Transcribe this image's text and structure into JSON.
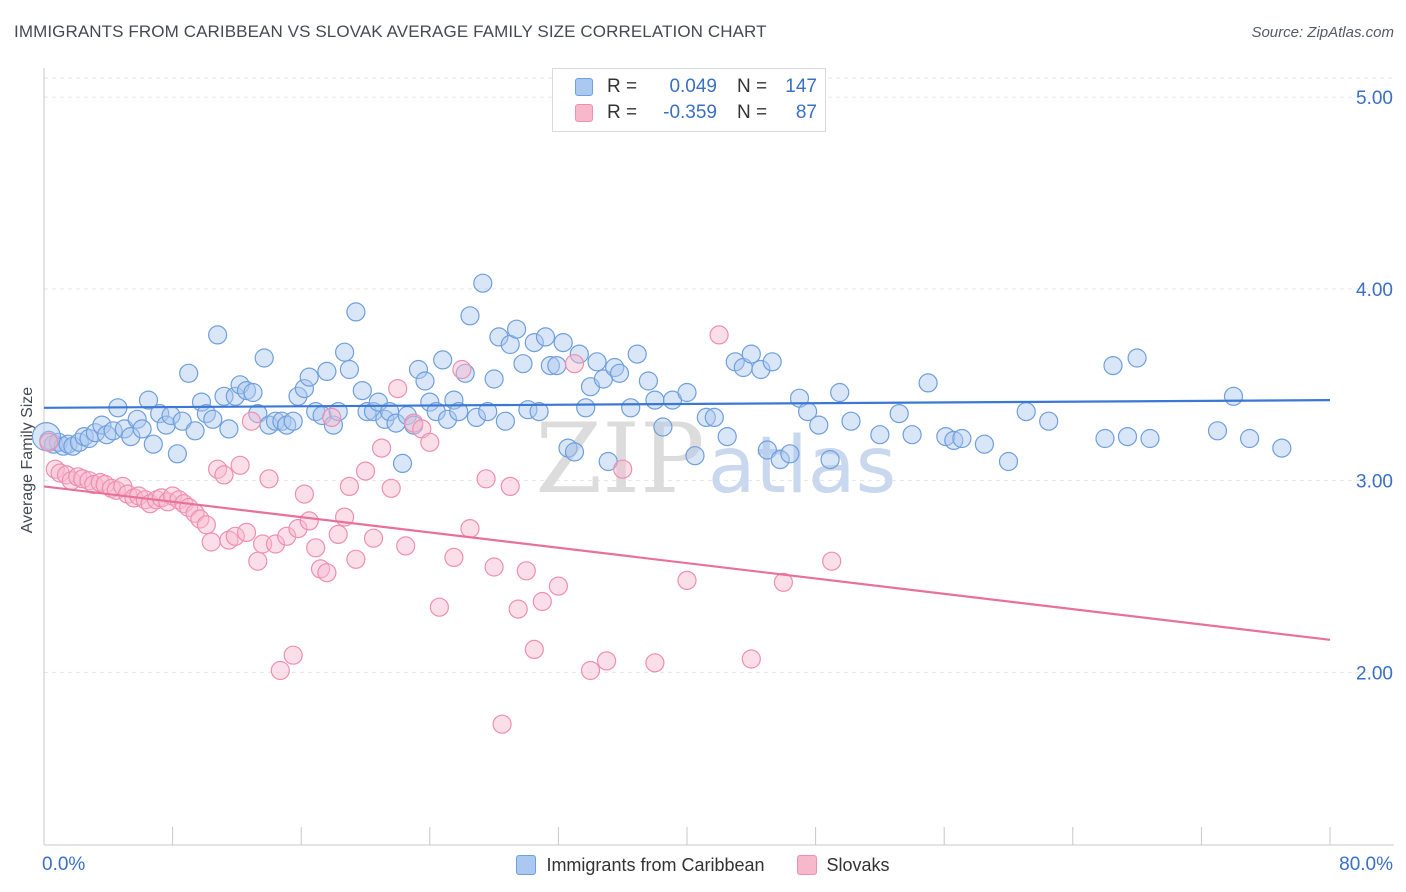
{
  "header": {
    "title": "IMMIGRANTS FROM CARIBBEAN VS SLOVAK AVERAGE FAMILY SIZE CORRELATION CHART",
    "source": "Source: ZipAtlas.com"
  },
  "watermark": {
    "zip": "ZIP",
    "atlas": "atlas"
  },
  "legend_top": [
    {
      "r_label": "R =",
      "r_value": "0.049",
      "n_label": "N =",
      "n_value": "147"
    },
    {
      "r_label": "R =",
      "r_value": "-0.359",
      "n_label": "N =",
      "n_value": "87"
    }
  ],
  "colors": {
    "blue_fill": "#aac8f0",
    "blue_stroke": "#6f9fdc",
    "blue_line": "#3a78d4",
    "pink_fill": "#f7b8cc",
    "pink_stroke": "#ee8fb0",
    "pink_line": "#e8719b",
    "axis_text": "#3a6fc4",
    "grid": "#e3e6ea"
  },
  "chart_data": {
    "type": "scatter",
    "xlabel": "",
    "ylabel": "Average Family Size",
    "xlim": [
      0,
      80
    ],
    "ylim": [
      1.1,
      5.1
    ],
    "x_tick_labels": [
      "0.0%",
      "80.0%"
    ],
    "y_ticks": [
      2.0,
      3.0,
      4.0,
      5.0
    ],
    "y_tick_labels": [
      "2.00",
      "3.00",
      "4.00",
      "5.00"
    ],
    "grid": "horizontal dashed",
    "legend_placement": "top-center and bottom",
    "series": [
      {
        "name": "Immigrants from Caribbean",
        "color": "blue",
        "trend": {
          "x": [
            0,
            80
          ],
          "y": [
            3.38,
            3.42
          ]
        },
        "points": [
          [
            0.3,
            3.21
          ],
          [
            0.6,
            3.19
          ],
          [
            0.9,
            3.2
          ],
          [
            1.2,
            3.18
          ],
          [
            1.5,
            3.19
          ],
          [
            1.8,
            3.18
          ],
          [
            2.2,
            3.2
          ],
          [
            2.5,
            3.23
          ],
          [
            2.8,
            3.22
          ],
          [
            3.2,
            3.25
          ],
          [
            3.6,
            3.29
          ],
          [
            3.9,
            3.24
          ],
          [
            4.3,
            3.26
          ],
          [
            4.6,
            3.38
          ],
          [
            5.0,
            3.27
          ],
          [
            5.4,
            3.23
          ],
          [
            5.8,
            3.32
          ],
          [
            6.1,
            3.27
          ],
          [
            6.5,
            3.42
          ],
          [
            6.8,
            3.19
          ],
          [
            7.2,
            3.35
          ],
          [
            7.6,
            3.29
          ],
          [
            7.9,
            3.34
          ],
          [
            8.3,
            3.14
          ],
          [
            8.6,
            3.31
          ],
          [
            9.0,
            3.56
          ],
          [
            9.4,
            3.26
          ],
          [
            9.8,
            3.41
          ],
          [
            10.1,
            3.35
          ],
          [
            10.5,
            3.32
          ],
          [
            10.8,
            3.76
          ],
          [
            11.2,
            3.44
          ],
          [
            11.5,
            3.27
          ],
          [
            11.9,
            3.44
          ],
          [
            12.2,
            3.5
          ],
          [
            12.6,
            3.47
          ],
          [
            13.0,
            3.46
          ],
          [
            13.3,
            3.35
          ],
          [
            13.7,
            3.64
          ],
          [
            14.0,
            3.29
          ],
          [
            14.4,
            3.31
          ],
          [
            14.8,
            3.31
          ],
          [
            15.1,
            3.29
          ],
          [
            15.5,
            3.31
          ],
          [
            15.8,
            3.44
          ],
          [
            16.2,
            3.48
          ],
          [
            16.5,
            3.54
          ],
          [
            16.9,
            3.36
          ],
          [
            17.3,
            3.34
          ],
          [
            17.6,
            3.57
          ],
          [
            18.0,
            3.29
          ],
          [
            18.3,
            3.36
          ],
          [
            18.7,
            3.67
          ],
          [
            19.0,
            3.58
          ],
          [
            19.4,
            3.88
          ],
          [
            19.8,
            3.47
          ],
          [
            20.1,
            3.36
          ],
          [
            20.5,
            3.36
          ],
          [
            20.8,
            3.41
          ],
          [
            21.2,
            3.32
          ],
          [
            21.5,
            3.36
          ],
          [
            21.9,
            3.3
          ],
          [
            22.3,
            3.09
          ],
          [
            22.6,
            3.34
          ],
          [
            23.0,
            3.29
          ],
          [
            23.3,
            3.58
          ],
          [
            23.7,
            3.52
          ],
          [
            24.0,
            3.41
          ],
          [
            24.4,
            3.36
          ],
          [
            24.8,
            3.63
          ],
          [
            25.1,
            3.32
          ],
          [
            25.5,
            3.42
          ],
          [
            25.8,
            3.36
          ],
          [
            26.2,
            3.56
          ],
          [
            26.5,
            3.86
          ],
          [
            26.9,
            3.33
          ],
          [
            27.3,
            4.03
          ],
          [
            27.6,
            3.36
          ],
          [
            28.0,
            3.53
          ],
          [
            28.3,
            3.75
          ],
          [
            28.7,
            3.31
          ],
          [
            29.0,
            3.71
          ],
          [
            29.4,
            3.79
          ],
          [
            29.8,
            3.61
          ],
          [
            30.1,
            3.37
          ],
          [
            30.5,
            3.72
          ],
          [
            30.8,
            3.36
          ],
          [
            31.2,
            3.75
          ],
          [
            31.5,
            3.6
          ],
          [
            31.9,
            3.6
          ],
          [
            32.3,
            3.72
          ],
          [
            32.6,
            3.17
          ],
          [
            33.0,
            3.15
          ],
          [
            33.3,
            3.66
          ],
          [
            33.7,
            3.38
          ],
          [
            34.0,
            3.49
          ],
          [
            34.4,
            3.62
          ],
          [
            34.8,
            3.53
          ],
          [
            35.1,
            3.1
          ],
          [
            35.5,
            3.59
          ],
          [
            35.8,
            3.56
          ],
          [
            36.5,
            3.38
          ],
          [
            36.9,
            3.66
          ],
          [
            37.6,
            3.52
          ],
          [
            38.0,
            3.42
          ],
          [
            38.5,
            3.28
          ],
          [
            39.1,
            3.42
          ],
          [
            40.0,
            3.46
          ],
          [
            40.5,
            3.13
          ],
          [
            41.2,
            3.33
          ],
          [
            41.7,
            3.33
          ],
          [
            42.5,
            3.23
          ],
          [
            43.0,
            3.62
          ],
          [
            43.5,
            3.59
          ],
          [
            44.0,
            3.66
          ],
          [
            44.6,
            3.58
          ],
          [
            45.0,
            3.16
          ],
          [
            45.3,
            3.62
          ],
          [
            45.8,
            3.11
          ],
          [
            46.4,
            3.14
          ],
          [
            47.0,
            3.43
          ],
          [
            47.5,
            3.36
          ],
          [
            48.2,
            3.29
          ],
          [
            48.9,
            3.11
          ],
          [
            49.5,
            3.46
          ],
          [
            50.2,
            3.31
          ],
          [
            52.0,
            3.24
          ],
          [
            53.2,
            3.35
          ],
          [
            54.0,
            3.24
          ],
          [
            55.0,
            3.51
          ],
          [
            56.1,
            3.23
          ],
          [
            56.6,
            3.21
          ],
          [
            57.1,
            3.22
          ],
          [
            58.5,
            3.19
          ],
          [
            60.0,
            3.1
          ],
          [
            61.1,
            3.36
          ],
          [
            62.5,
            3.31
          ],
          [
            66.0,
            3.22
          ],
          [
            66.5,
            3.6
          ],
          [
            67.4,
            3.23
          ],
          [
            68.0,
            3.64
          ],
          [
            68.8,
            3.22
          ],
          [
            73.0,
            3.26
          ],
          [
            74.0,
            3.44
          ],
          [
            75.0,
            3.22
          ],
          [
            77.0,
            3.17
          ],
          [
            0.15,
            3.23
          ]
        ]
      },
      {
        "name": "Slovaks",
        "color": "pink",
        "trend": {
          "x": [
            0,
            80
          ],
          "y": [
            2.97,
            2.17
          ]
        },
        "points": [
          [
            0.3,
            3.2
          ],
          [
            0.7,
            3.06
          ],
          [
            1.0,
            3.04
          ],
          [
            1.4,
            3.03
          ],
          [
            1.7,
            3.0
          ],
          [
            2.1,
            3.02
          ],
          [
            2.4,
            3.01
          ],
          [
            2.8,
            3.0
          ],
          [
            3.1,
            2.98
          ],
          [
            3.5,
            2.99
          ],
          [
            3.8,
            2.98
          ],
          [
            4.2,
            2.96
          ],
          [
            4.5,
            2.95
          ],
          [
            4.9,
            2.97
          ],
          [
            5.2,
            2.93
          ],
          [
            5.6,
            2.91
          ],
          [
            5.9,
            2.92
          ],
          [
            6.3,
            2.9
          ],
          [
            6.6,
            2.88
          ],
          [
            7.0,
            2.9
          ],
          [
            7.3,
            2.91
          ],
          [
            7.7,
            2.89
          ],
          [
            8.0,
            2.92
          ],
          [
            8.4,
            2.9
          ],
          [
            8.7,
            2.88
          ],
          [
            9.0,
            2.86
          ],
          [
            9.4,
            2.83
          ],
          [
            9.7,
            2.8
          ],
          [
            10.1,
            2.77
          ],
          [
            10.4,
            2.68
          ],
          [
            10.8,
            3.06
          ],
          [
            11.2,
            3.03
          ],
          [
            11.5,
            2.69
          ],
          [
            11.9,
            2.71
          ],
          [
            12.2,
            3.08
          ],
          [
            12.6,
            2.73
          ],
          [
            12.9,
            3.31
          ],
          [
            13.3,
            2.58
          ],
          [
            13.6,
            2.67
          ],
          [
            14.0,
            3.01
          ],
          [
            14.4,
            2.67
          ],
          [
            14.7,
            2.01
          ],
          [
            15.1,
            2.71
          ],
          [
            15.5,
            2.09
          ],
          [
            15.8,
            2.75
          ],
          [
            16.2,
            2.93
          ],
          [
            16.5,
            2.79
          ],
          [
            16.9,
            2.65
          ],
          [
            17.2,
            2.54
          ],
          [
            17.6,
            2.52
          ],
          [
            17.9,
            3.33
          ],
          [
            18.3,
            2.72
          ],
          [
            18.7,
            2.81
          ],
          [
            19.0,
            2.97
          ],
          [
            19.4,
            2.59
          ],
          [
            20.0,
            3.05
          ],
          [
            20.5,
            2.7
          ],
          [
            21.0,
            3.17
          ],
          [
            21.6,
            2.96
          ],
          [
            22.0,
            3.48
          ],
          [
            22.5,
            2.66
          ],
          [
            23.0,
            3.3
          ],
          [
            23.5,
            3.27
          ],
          [
            24.0,
            3.2
          ],
          [
            24.6,
            2.34
          ],
          [
            25.5,
            2.6
          ],
          [
            26.0,
            3.58
          ],
          [
            26.5,
            2.75
          ],
          [
            27.5,
            3.01
          ],
          [
            28.0,
            2.55
          ],
          [
            28.5,
            1.73
          ],
          [
            29.0,
            2.97
          ],
          [
            29.5,
            2.33
          ],
          [
            30.0,
            2.53
          ],
          [
            30.5,
            2.12
          ],
          [
            31.0,
            2.37
          ],
          [
            32.0,
            2.45
          ],
          [
            33.0,
            3.61
          ],
          [
            34.0,
            2.01
          ],
          [
            35.0,
            2.06
          ],
          [
            36.0,
            3.06
          ],
          [
            38.0,
            2.05
          ],
          [
            40.0,
            2.48
          ],
          [
            42.0,
            3.76
          ],
          [
            44.0,
            2.07
          ],
          [
            46.0,
            2.47
          ],
          [
            49.0,
            2.58
          ]
        ]
      }
    ]
  },
  "legend_bottom": [
    {
      "label": "Immigrants from Caribbean"
    },
    {
      "label": "Slovaks"
    }
  ]
}
